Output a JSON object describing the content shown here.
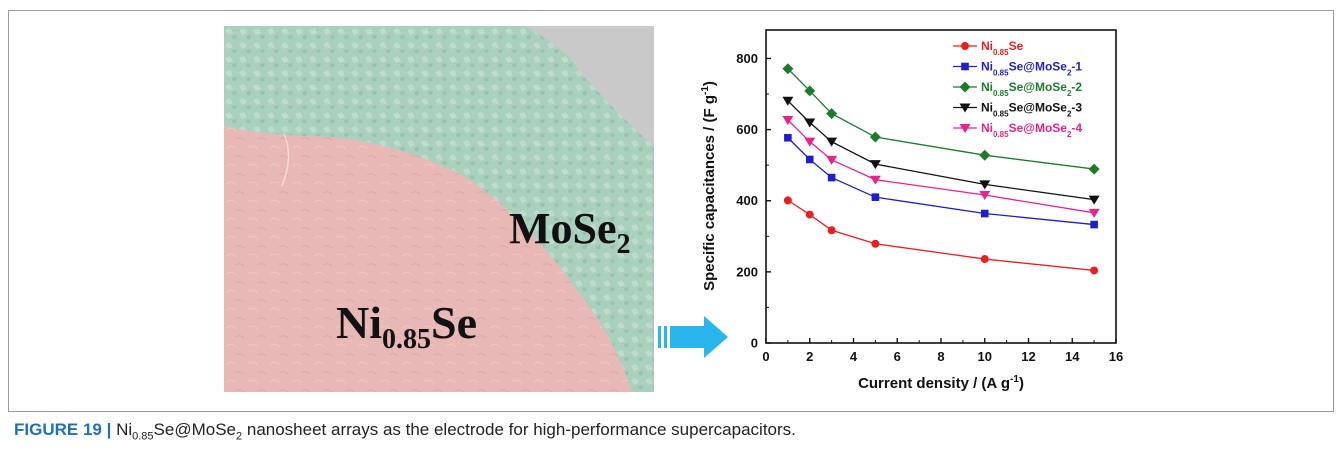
{
  "sem_image": {
    "labels": {
      "mose2_main": "MoSe",
      "mose2_sub": "2",
      "ni_main": "Ni",
      "ni_sub": "0.85",
      "ni_tail": "Se"
    },
    "colors": {
      "mose2_region": "#a9cfbd",
      "ni_region": "#e7b8b5",
      "background": "#c9c9c9"
    }
  },
  "arrow": {
    "icon": "right-arrow-icon",
    "color": "#2ab6ec"
  },
  "caption": {
    "figure_label": "FIGURE 19 |",
    "text_1": " Ni",
    "sub_1": "0.85",
    "text_2": "Se@MoSe",
    "sub_2": "2",
    "text_3": " nanosheet arrays as the electrode for high-performance supercapacitors."
  },
  "chart_data": {
    "type": "line",
    "xlabel": "Current density / (A g",
    "xlabel_sup": "-1",
    "xlabel_end": ")",
    "ylabel": "Specific capacitances / (F g",
    "ylabel_sup": "-1",
    "ylabel_end": ")",
    "xlim": [
      0,
      16
    ],
    "ylim": [
      0,
      880
    ],
    "x_ticks": [
      "0",
      "2",
      "4",
      "6",
      "8",
      "10",
      "12",
      "14",
      "16"
    ],
    "y_ticks": [
      "0",
      "200",
      "400",
      "600",
      "800"
    ],
    "x": [
      1,
      2,
      3,
      5,
      10,
      15
    ],
    "legend_position": "top-right",
    "series": [
      {
        "name_main": "Ni",
        "name_sub": "0.85",
        "name_tail": "Se",
        "color": "#e8201f",
        "marker": "circle",
        "values": [
          401,
          361,
          317,
          279,
          236,
          204
        ]
      },
      {
        "name_main": "Ni",
        "name_sub": "0.85",
        "name_tail": "Se@MoSe",
        "name_sub2": "2",
        "name_end": "-1",
        "color": "#1f1fc8",
        "marker": "square",
        "values": [
          577,
          516,
          465,
          410,
          364,
          333
        ]
      },
      {
        "name_main": "Ni",
        "name_sub": "0.85",
        "name_tail": "Se@MoSe",
        "name_sub2": "2",
        "name_end": "-2",
        "color": "#1f7a2e",
        "marker": "diamond",
        "values": [
          771,
          709,
          645,
          579,
          528,
          489
        ]
      },
      {
        "name_main": "Ni",
        "name_sub": "0.85",
        "name_tail": "Se@MoSe",
        "name_sub2": "2",
        "name_end": "-3",
        "color": "#111111",
        "marker": "triangle-down",
        "values": [
          681,
          620,
          566,
          503,
          446,
          403
        ]
      },
      {
        "name_main": "Ni",
        "name_sub": "0.85",
        "name_tail": "Se@MoSe",
        "name_sub2": "2",
        "name_end": "-4",
        "color": "#e8238c",
        "marker": "triangle-down",
        "values": [
          627,
          566,
          515,
          459,
          416,
          366
        ]
      }
    ]
  }
}
